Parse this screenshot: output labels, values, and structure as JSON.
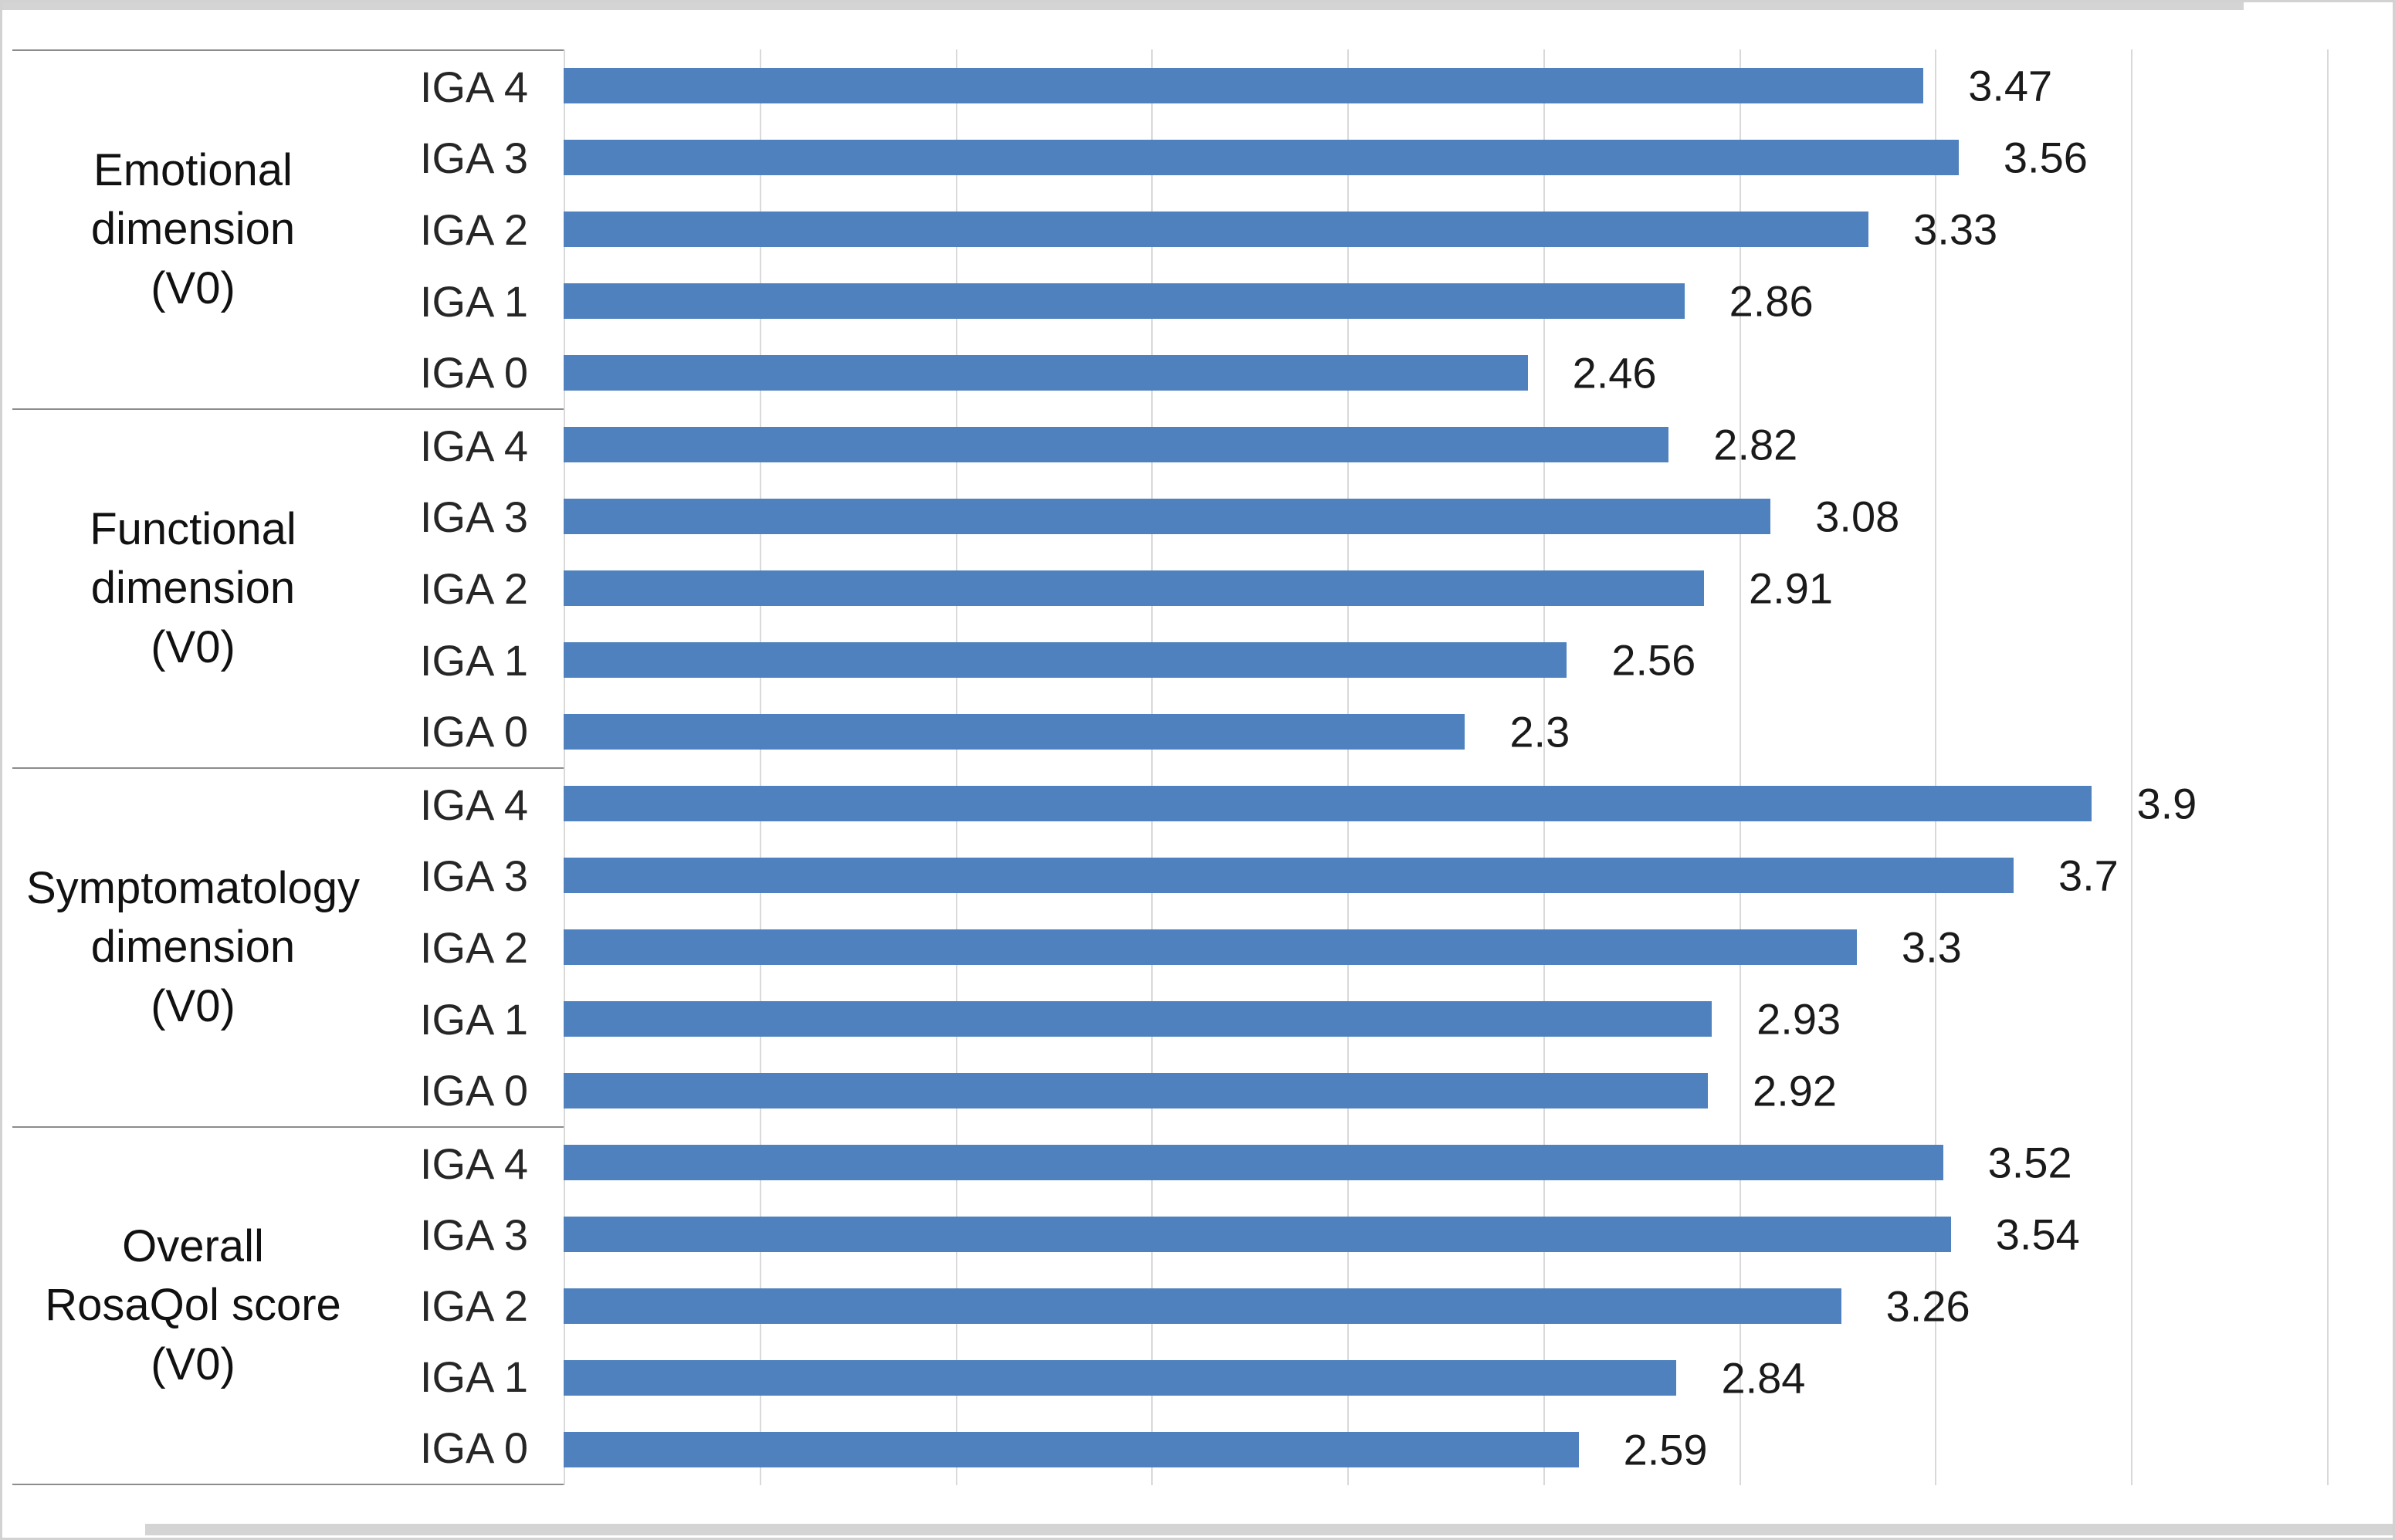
{
  "chart_data": {
    "type": "bar",
    "orientation": "horizontal",
    "title": "",
    "xlabel": "",
    "ylabel": "",
    "xlim": [
      0,
      4.5
    ],
    "grid_interval": 0.5,
    "grid": true,
    "legend": "none",
    "bar_color": "#4e81bd",
    "gridline_color": "#d9d9d9",
    "separator_color": "#8c8c8c",
    "groups": [
      {
        "label": "Emotional dimension (V0)",
        "label_lines": [
          "Emotional",
          "dimension",
          "(V0)"
        ],
        "bars": [
          {
            "category": "IGA 4",
            "value": 3.47,
            "value_label": "3.47"
          },
          {
            "category": "IGA 3",
            "value": 3.56,
            "value_label": "3.56"
          },
          {
            "category": "IGA 2",
            "value": 3.33,
            "value_label": "3.33"
          },
          {
            "category": "IGA 1",
            "value": 2.86,
            "value_label": "2.86"
          },
          {
            "category": "IGA 0",
            "value": 2.46,
            "value_label": "2.46"
          }
        ]
      },
      {
        "label": "Functional dimension (V0)",
        "label_lines": [
          "Functional",
          "dimension",
          "(V0)"
        ],
        "bars": [
          {
            "category": "IGA 4",
            "value": 2.82,
            "value_label": "2.82"
          },
          {
            "category": "IGA 3",
            "value": 3.08,
            "value_label": "3.08"
          },
          {
            "category": "IGA 2",
            "value": 2.91,
            "value_label": "2.91"
          },
          {
            "category": "IGA 1",
            "value": 2.56,
            "value_label": "2.56"
          },
          {
            "category": "IGA 0",
            "value": 2.3,
            "value_label": "2.3"
          }
        ]
      },
      {
        "label": "Symptomatology dimension (V0)",
        "label_lines": [
          "Symptomatology",
          "dimension",
          "(V0)"
        ],
        "bars": [
          {
            "category": "IGA 4",
            "value": 3.9,
            "value_label": "3.9"
          },
          {
            "category": "IGA 3",
            "value": 3.7,
            "value_label": "3.7"
          },
          {
            "category": "IGA 2",
            "value": 3.3,
            "value_label": "3.3"
          },
          {
            "category": "IGA 1",
            "value": 2.93,
            "value_label": "2.93"
          },
          {
            "category": "IGA 0",
            "value": 2.92,
            "value_label": "2.92"
          }
        ]
      },
      {
        "label": "Overall RosaQol score (V0)",
        "label_lines": [
          "Overall",
          "RosaQol score",
          "(V0)"
        ],
        "bars": [
          {
            "category": "IGA 4",
            "value": 3.52,
            "value_label": "3.52"
          },
          {
            "category": "IGA 3",
            "value": 3.54,
            "value_label": "3.54"
          },
          {
            "category": "IGA 2",
            "value": 3.26,
            "value_label": "3.26"
          },
          {
            "category": "IGA 1",
            "value": 2.84,
            "value_label": "2.84"
          },
          {
            "category": "IGA 0",
            "value": 2.59,
            "value_label": "2.59"
          }
        ]
      }
    ]
  }
}
